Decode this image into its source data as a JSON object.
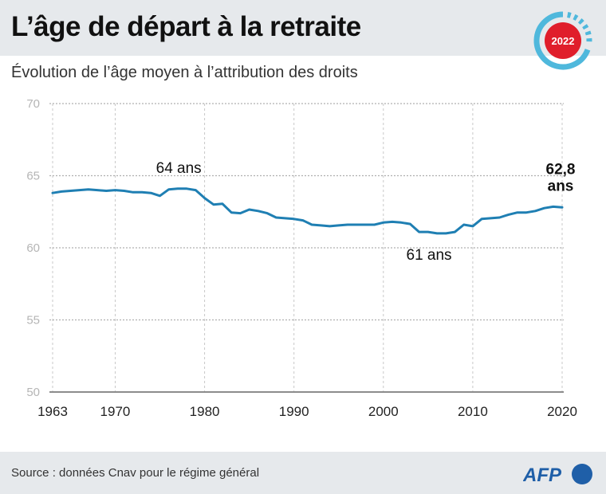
{
  "header": {
    "title": "L’âge de départ à la retraite",
    "subtitle": "Évolution de l’âge moyen à l’attribution des droits",
    "badge_year": "2022"
  },
  "footer": {
    "source": "Source : données Cnav pour le régime général",
    "logo_text": "AFP"
  },
  "colors": {
    "line": "#1f7fb3",
    "badge_ring": "#4fb8dc",
    "badge_fill": "#e01e2b",
    "logo": "#1f5fa8",
    "band": "#e6e9ec"
  },
  "chart_data": {
    "type": "line",
    "title": "L’âge de départ à la retraite",
    "subtitle": "Évolution de l’âge moyen à l’attribution des droits",
    "xlabel": "",
    "ylabel": "",
    "xlim": [
      1963,
      2020
    ],
    "ylim": [
      50,
      70
    ],
    "grid": true,
    "y_ticks": [
      "50",
      "55",
      "60",
      "65",
      "70"
    ],
    "y_tick_values": [
      50,
      55,
      60,
      65,
      70
    ],
    "x_ticks": [
      "1963",
      "1970",
      "1980",
      "1990",
      "2000",
      "2010",
      "2020"
    ],
    "x_tick_values": [
      1963,
      1970,
      1980,
      1990,
      2000,
      2010,
      2020
    ],
    "series": [
      {
        "name": "Âge moyen à l’attribution des droits",
        "x": [
          1963,
          1964,
          1965,
          1966,
          1967,
          1968,
          1969,
          1970,
          1971,
          1972,
          1973,
          1974,
          1975,
          1976,
          1977,
          1978,
          1979,
          1980,
          1981,
          1982,
          1983,
          1984,
          1985,
          1986,
          1987,
          1988,
          1989,
          1990,
          1991,
          1992,
          1993,
          1994,
          1995,
          1996,
          1997,
          1998,
          1999,
          2000,
          2001,
          2002,
          2003,
          2004,
          2005,
          2006,
          2007,
          2008,
          2009,
          2010,
          2011,
          2012,
          2013,
          2014,
          2015,
          2016,
          2017,
          2018,
          2019,
          2020
        ],
        "values": [
          63.8,
          63.9,
          63.95,
          64.0,
          64.05,
          64.0,
          63.95,
          64.0,
          63.95,
          63.85,
          63.85,
          63.8,
          63.6,
          64.05,
          64.1,
          64.1,
          64.0,
          63.45,
          63.0,
          63.05,
          62.45,
          62.4,
          62.65,
          62.55,
          62.4,
          62.1,
          62.05,
          62.0,
          61.9,
          61.6,
          61.55,
          61.5,
          61.55,
          61.6,
          61.6,
          61.6,
          61.6,
          61.75,
          61.8,
          61.75,
          61.65,
          61.1,
          61.1,
          61.0,
          61.0,
          61.1,
          61.6,
          61.5,
          62.0,
          62.05,
          62.1,
          62.3,
          62.45,
          62.45,
          62.55,
          62.75,
          62.85,
          62.8
        ]
      }
    ],
    "annotations": [
      {
        "text": "64 ans",
        "x": 1978,
        "y": 64.1,
        "bold": false
      },
      {
        "text": "61 ans",
        "x": 2006,
        "y": 61.0,
        "bold": false
      },
      {
        "text": "62,8",
        "x": 2020,
        "y": 62.8,
        "bold": true
      },
      {
        "text": "ans",
        "x": 2020,
        "y": 62.8,
        "bold": true
      }
    ]
  }
}
